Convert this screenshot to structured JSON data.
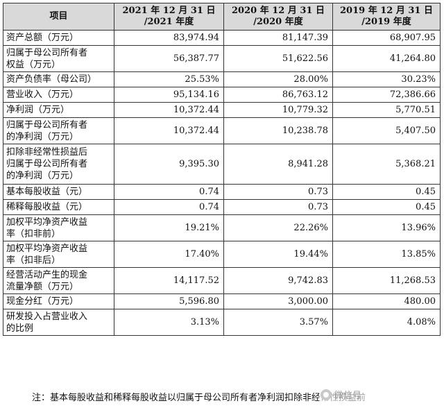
{
  "table": {
    "headers": [
      "项目",
      [
        "2021 年 12 月 31 日",
        "/2021 年度"
      ],
      [
        "2020 年 12 月 31 日",
        "/2020 年度"
      ],
      [
        "2019 年 12 月 31 日",
        "/2019 年度"
      ]
    ],
    "rows": [
      {
        "label": [
          "资产总额（万元）"
        ],
        "values": [
          "83,974.94",
          "81,147.39",
          "68,907.95"
        ]
      },
      {
        "label": [
          "归属于母公司所有者",
          "权益（万元）"
        ],
        "values": [
          "56,387.77",
          "51,622.56",
          "41,264.80"
        ]
      },
      {
        "label": [
          "资产负债率（母公司）"
        ],
        "values": [
          "25.53%",
          "28.00%",
          "30.23%"
        ]
      },
      {
        "label": [
          "营业收入（万元）"
        ],
        "values": [
          "95,134.16",
          "86,763.12",
          "72,386.66"
        ]
      },
      {
        "label": [
          "净利润（万元）"
        ],
        "values": [
          "10,372.44",
          "10,779.32",
          "5,770.51"
        ]
      },
      {
        "label": [
          "归属于母公司所有者",
          "的净利润（万元）"
        ],
        "values": [
          "10,372.44",
          "10,238.78",
          "5,407.50"
        ]
      },
      {
        "label": [
          "扣除非经常性损益后",
          "归属于母公司所有者",
          "的净利润（万元）"
        ],
        "values": [
          "9,395.30",
          "8,941.28",
          "5,368.21"
        ]
      },
      {
        "label": [
          "基本每股收益（元）"
        ],
        "values": [
          "0.74",
          "0.73",
          "0.45"
        ]
      },
      {
        "label": [
          "稀释每股收益（元）"
        ],
        "values": [
          "0.74",
          "0.73",
          "0.45"
        ]
      },
      {
        "label": [
          "加权平均净资产收益",
          "率（扣非前）"
        ],
        "values": [
          "19.21%",
          "22.26%",
          "13.96%"
        ]
      },
      {
        "label": [
          "加权平均净资产收益",
          "率（扣非后）"
        ],
        "values": [
          "17.40%",
          "19.44%",
          "13.85%"
        ]
      },
      {
        "label": [
          "经营活动产生的现金",
          "流量净额（万元）"
        ],
        "values": [
          "14,117.52",
          "9,742.83",
          "11,268.53"
        ]
      },
      {
        "label": [
          "现金分红（万元）"
        ],
        "values": [
          "5,596.80",
          "3,000.00",
          "480.00"
        ]
      },
      {
        "label": [
          "研发投入占营业收入",
          "的比例"
        ],
        "values": [
          "3.13%",
          "3.57%",
          "4.08%"
        ]
      }
    ]
  },
  "note": "注：基本每股收益和稀释每股收益以归属于母公司所有者净利润扣除非经常性损益前",
  "watermark": {
    "icon": "wechat-icon",
    "text": "微信号"
  }
}
